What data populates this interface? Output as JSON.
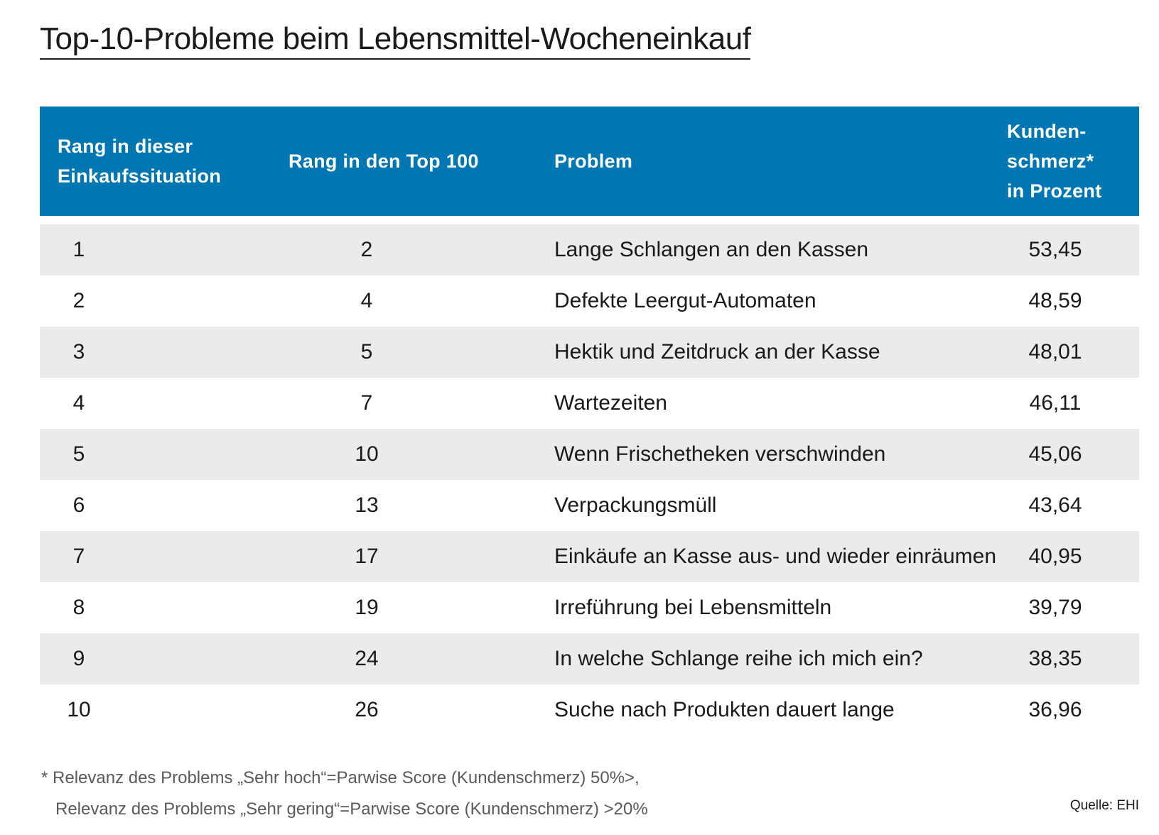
{
  "title": "Top-10-Probleme beim Lebensmittel-Wocheneinkauf",
  "chart_data": {
    "type": "table",
    "title": "Top-10-Probleme beim Lebensmittel-Wocheneinkauf",
    "columns": [
      "Rang in dieser\nEinkaufssituation",
      "Rang in den Top 100",
      "Problem",
      "Kunden-\nschmerz*\nin Prozent"
    ],
    "rows": [
      [
        "1",
        "2",
        "Lange Schlangen an den Kassen",
        "53,45"
      ],
      [
        "2",
        "4",
        "Defekte Leergut-Automaten",
        "48,59"
      ],
      [
        "3",
        "5",
        "Hektik und Zeitdruck an der Kasse",
        "48,01"
      ],
      [
        "4",
        "7",
        "Wartezeiten",
        "46,11"
      ],
      [
        "5",
        "10",
        "Wenn Frischetheken verschwinden",
        "45,06"
      ],
      [
        "6",
        "13",
        "Verpackungsmüll",
        "43,64"
      ],
      [
        "7",
        "17",
        "Einkäufe an Kasse aus- und wieder einräumen",
        "40,95"
      ],
      [
        "8",
        "19",
        "Irreführung bei Lebensmitteln",
        "39,79"
      ],
      [
        "9",
        "24",
        "In welche Schlange reihe ich mich ein?",
        "38,35"
      ],
      [
        "10",
        "26",
        "Suche nach Produkten dauert lange",
        "36,96"
      ]
    ]
  },
  "footnote": {
    "line1": "* Relevanz des Problems „Sehr hoch“=Parwise Score (Kundenschmerz) 50%>,",
    "line2": "Relevanz des Problems „Sehr gering“=Parwise Score (Kundenschmerz) >20%"
  },
  "source": "Quelle: EHI",
  "colors": {
    "header_bg": "#0077b3",
    "header_text": "#ffffff",
    "stripe": "#ebebeb"
  }
}
